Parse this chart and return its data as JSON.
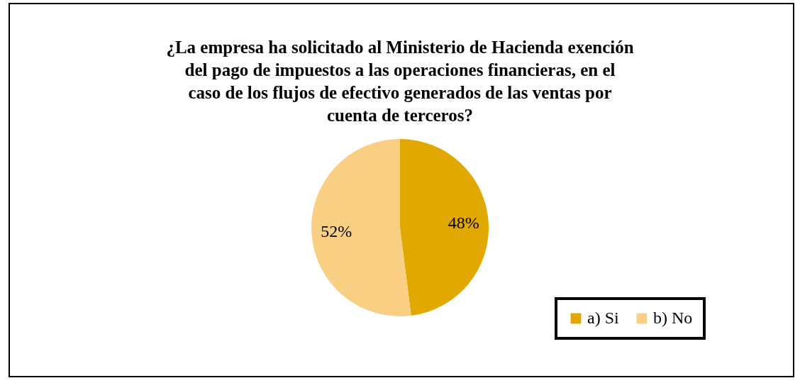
{
  "chart_data": {
    "type": "pie",
    "title": "¿La empresa ha solicitado al Ministerio de Hacienda exención del pago de impuestos a las operaciones financieras, en el caso de los flujos de efectivo generados de las ventas por cuenta de terceros?",
    "categories": [
      "a) Si",
      "b) No"
    ],
    "values": [
      48,
      52
    ],
    "value_labels": [
      "48%",
      "52%"
    ],
    "colors": [
      "#e0a800",
      "#f9cf84"
    ],
    "legend": "bottom right"
  }
}
